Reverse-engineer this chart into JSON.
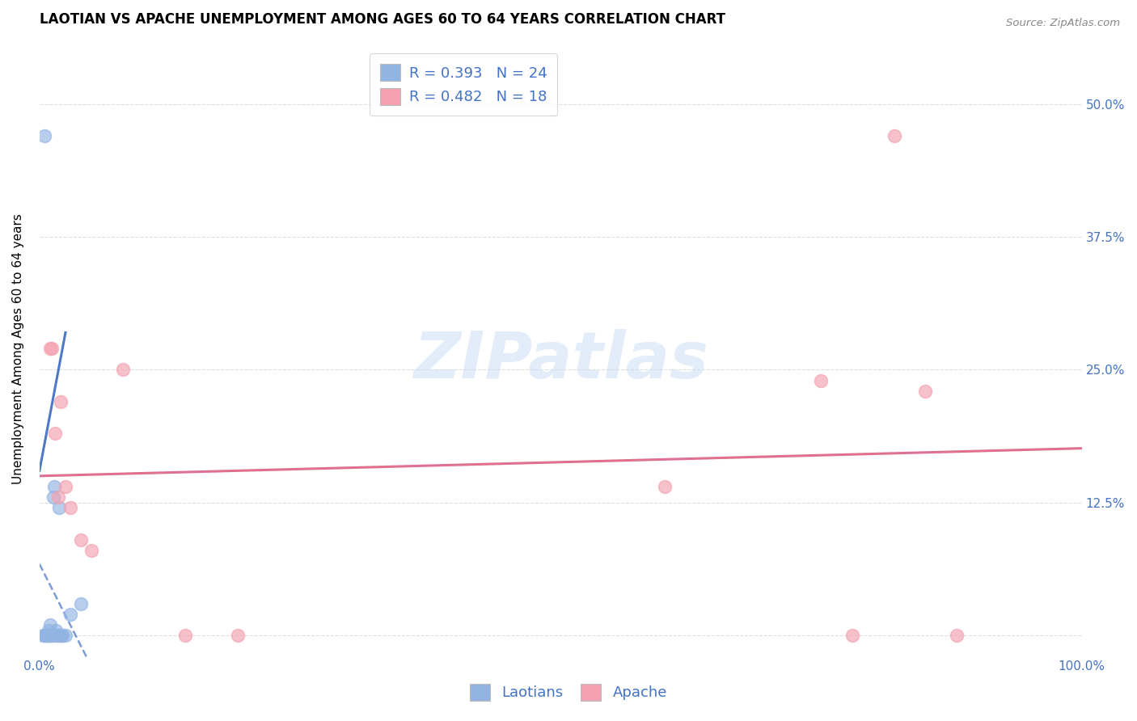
{
  "title": "LAOTIAN VS APACHE UNEMPLOYMENT AMONG AGES 60 TO 64 YEARS CORRELATION CHART",
  "source": "Source: ZipAtlas.com",
  "ylabel": "Unemployment Among Ages 60 to 64 years",
  "watermark": "ZIPatlas",
  "laotian_R": 0.393,
  "laotian_N": 24,
  "apache_R": 0.482,
  "apache_N": 18,
  "laotian_color": "#92b4e3",
  "apache_color": "#f4a0b0",
  "laotian_line_color": "#4472c4",
  "apache_line_color": "#e07090",
  "tick_color": "#4472c4",
  "xlim": [
    0.0,
    1.0
  ],
  "ylim": [
    -0.02,
    0.56
  ],
  "xticks": [
    0.0,
    0.125,
    0.25,
    0.375,
    0.5,
    0.625,
    0.75,
    0.875,
    1.0
  ],
  "xtick_labels": [
    "0.0%",
    "",
    "",
    "",
    "",
    "",
    "",
    "",
    "100.0%"
  ],
  "yticks": [
    0.0,
    0.125,
    0.25,
    0.375,
    0.5
  ],
  "ytick_labels_right": [
    "",
    "12.5%",
    "25.0%",
    "37.5%",
    "50.0%"
  ],
  "laotian_x": [
    0.003,
    0.005,
    0.006,
    0.007,
    0.008,
    0.009,
    0.009,
    0.01,
    0.01,
    0.012,
    0.013,
    0.014,
    0.015,
    0.016,
    0.017,
    0.018,
    0.019,
    0.02,
    0.021,
    0.022,
    0.025,
    0.03,
    0.04,
    0.005
  ],
  "laotian_y": [
    0.0,
    0.0,
    0.0,
    0.0,
    0.0,
    0.0,
    0.005,
    0.0,
    0.01,
    0.0,
    0.13,
    0.14,
    0.0,
    0.005,
    0.0,
    0.0,
    0.12,
    0.0,
    0.0,
    0.0,
    0.0,
    0.02,
    0.03,
    0.47
  ],
  "apache_x": [
    0.01,
    0.012,
    0.015,
    0.018,
    0.02,
    0.025,
    0.03,
    0.04,
    0.05,
    0.08,
    0.14,
    0.19,
    0.6,
    0.75,
    0.78,
    0.82,
    0.85,
    0.88
  ],
  "apache_y": [
    0.27,
    0.27,
    0.19,
    0.13,
    0.22,
    0.14,
    0.12,
    0.09,
    0.08,
    0.25,
    0.0,
    0.0,
    0.14,
    0.24,
    0.0,
    0.47,
    0.23,
    0.0
  ],
  "background_color": "#ffffff",
  "grid_color": "#dddddd",
  "title_fontsize": 12,
  "axis_label_fontsize": 11,
  "tick_fontsize": 11,
  "legend_fontsize": 13
}
